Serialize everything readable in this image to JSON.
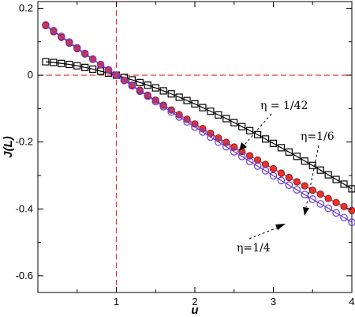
{
  "chart_data": {
    "type": "line",
    "title": "",
    "xlabel": "u",
    "ylabel": "J(L)",
    "xlim": [
      0,
      4
    ],
    "ylim": [
      -0.65,
      0.22
    ],
    "grid": false,
    "legend": "none",
    "x_ticks": [
      {
        "value": 1,
        "label": "1"
      },
      {
        "value": 2,
        "label": "2"
      },
      {
        "value": 3,
        "label": "3"
      },
      {
        "value": 4,
        "label": "4"
      }
    ],
    "y_ticks": [
      {
        "value": 0.2,
        "label": "0.2"
      },
      {
        "value": 0,
        "label": "0"
      },
      {
        "value": -0.2,
        "label": "-0.2"
      },
      {
        "value": -0.4,
        "label": "-0.4"
      },
      {
        "value": -0.6,
        "label": "-0.6"
      }
    ],
    "reference_lines": [
      {
        "orientation": "vertical",
        "value": 1,
        "color": "#e8322e",
        "style": "dashed"
      },
      {
        "orientation": "horizontal",
        "value": 0,
        "color": "#e8322e",
        "style": "dashed"
      }
    ],
    "series": [
      {
        "name": "η = 1/42",
        "color": "#000000",
        "marker": "open-square",
        "fill": "none",
        "x": [
          0.1,
          0.2,
          0.3,
          0.4,
          0.5,
          0.6,
          0.7,
          0.8,
          0.9,
          1.0,
          1.1,
          1.2,
          1.3,
          1.4,
          1.5,
          1.6,
          1.7,
          1.8,
          1.9,
          2.0,
          2.1,
          2.2,
          2.3,
          2.4,
          2.5,
          2.6,
          2.7,
          2.8,
          2.9,
          3.0,
          3.1,
          3.2,
          3.3,
          3.4,
          3.5,
          3.6,
          3.7,
          3.8,
          3.9,
          4.0
        ],
        "y": [
          0.04,
          0.038,
          0.035,
          0.032,
          0.028,
          0.023,
          0.018,
          0.012,
          0.006,
          0.0,
          -0.007,
          -0.014,
          -0.022,
          -0.03,
          -0.038,
          -0.047,
          -0.056,
          -0.066,
          -0.076,
          -0.086,
          -0.097,
          -0.108,
          -0.119,
          -0.13,
          -0.142,
          -0.154,
          -0.166,
          -0.178,
          -0.191,
          -0.204,
          -0.217,
          -0.23,
          -0.243,
          -0.257,
          -0.27,
          -0.284,
          -0.298,
          -0.312,
          -0.326,
          -0.34
        ]
      },
      {
        "name": "η = 1/6",
        "color": "#e8322e",
        "marker": "filled-circle",
        "fill": "#e8322e",
        "x": [
          0.1,
          0.2,
          0.3,
          0.4,
          0.5,
          0.6,
          0.7,
          0.8,
          0.9,
          1.0,
          1.1,
          1.2,
          1.3,
          1.4,
          1.5,
          1.6,
          1.7,
          1.8,
          1.9,
          2.0,
          2.1,
          2.2,
          2.3,
          2.4,
          2.5,
          2.6,
          2.7,
          2.8,
          2.9,
          3.0,
          3.1,
          3.2,
          3.3,
          3.4,
          3.5,
          3.6,
          3.7,
          3.8,
          3.9,
          4.0
        ],
        "y": [
          0.148,
          0.13,
          0.113,
          0.096,
          0.079,
          0.063,
          0.047,
          0.031,
          0.015,
          0.0,
          -0.015,
          -0.03,
          -0.045,
          -0.06,
          -0.075,
          -0.09,
          -0.104,
          -0.118,
          -0.132,
          -0.146,
          -0.16,
          -0.174,
          -0.188,
          -0.201,
          -0.215,
          -0.228,
          -0.241,
          -0.254,
          -0.267,
          -0.28,
          -0.293,
          -0.306,
          -0.319,
          -0.331,
          -0.344,
          -0.356,
          -0.369,
          -0.381,
          -0.393,
          -0.405
        ]
      },
      {
        "name": "η = 1/4",
        "color": "#6a3bd4",
        "marker": "open-circle",
        "fill": "none",
        "x": [
          0.1,
          0.2,
          0.3,
          0.4,
          0.5,
          0.6,
          0.7,
          0.8,
          0.9,
          1.0,
          1.1,
          1.2,
          1.3,
          1.4,
          1.5,
          1.6,
          1.7,
          1.8,
          1.9,
          2.0,
          2.1,
          2.2,
          2.3,
          2.4,
          2.5,
          2.6,
          2.7,
          2.8,
          2.9,
          3.0,
          3.1,
          3.2,
          3.3,
          3.4,
          3.5,
          3.6,
          3.7,
          3.8,
          3.9,
          4.0
        ],
        "y": [
          0.15,
          0.133,
          0.116,
          0.099,
          0.082,
          0.065,
          0.048,
          0.032,
          0.016,
          0.0,
          -0.016,
          -0.032,
          -0.048,
          -0.063,
          -0.079,
          -0.094,
          -0.11,
          -0.125,
          -0.14,
          -0.155,
          -0.17,
          -0.185,
          -0.2,
          -0.214,
          -0.229,
          -0.243,
          -0.258,
          -0.272,
          -0.286,
          -0.301,
          -0.315,
          -0.329,
          -0.343,
          -0.357,
          -0.371,
          -0.385,
          -0.398,
          -0.412,
          -0.426,
          -0.44
        ]
      }
    ],
    "annotations": [
      {
        "text": "η = 1/42",
        "target": [
          2.82,
          -0.21
        ]
      },
      {
        "text": "η=1/6",
        "target": [
          3.38,
          -0.43
        ]
      },
      {
        "text": "η=1/4",
        "target": [
          2.88,
          -0.47
        ]
      }
    ]
  }
}
